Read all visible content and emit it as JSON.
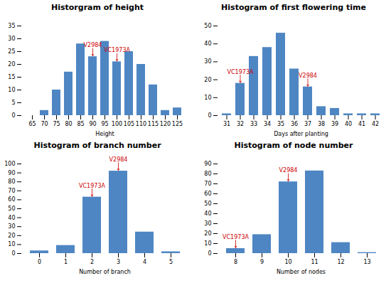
{
  "chart_data": [
    {
      "type": "bar",
      "title": "Historgram of height",
      "xlabel": "Height",
      "categories": [
        65,
        70,
        75,
        80,
        85,
        90,
        95,
        100,
        105,
        110,
        115,
        120,
        125
      ],
      "values": [
        0,
        2,
        10,
        17,
        28,
        23,
        29,
        21,
        25,
        20,
        12,
        2,
        3
      ],
      "color": "#4E86C3",
      "ylim": [
        0,
        35
      ],
      "yticks": [
        0,
        5,
        10,
        15,
        20,
        25,
        30,
        35
      ],
      "grid": false,
      "annotations": [
        {
          "text": "V2984",
          "x": 90,
          "y": 23,
          "color": "#CC0000"
        },
        {
          "text": "VC1973A",
          "x": 100,
          "y": 21,
          "color": "#CC0000"
        }
      ]
    },
    {
      "type": "bar",
      "title": "Histogram of first flowering time",
      "xlabel": "Days after planting",
      "categories": [
        31,
        32,
        33,
        34,
        35,
        36,
        37,
        38,
        39,
        40,
        41,
        42
      ],
      "values": [
        1,
        18,
        33,
        38,
        46,
        26,
        16,
        5,
        4,
        1,
        1,
        1
      ],
      "color": "#4E86C3",
      "ylim": [
        0,
        50
      ],
      "yticks": [
        0,
        10,
        20,
        30,
        40,
        50
      ],
      "grid": false,
      "annotations": [
        {
          "text": "VC1973A",
          "x": 32,
          "y": 18,
          "color": "#CC0000"
        },
        {
          "text": "V2984",
          "x": 37,
          "y": 16,
          "color": "#CC0000"
        }
      ]
    },
    {
      "type": "bar",
      "title": "Histogram of branch number",
      "xlabel": "Number of branch",
      "categories": [
        0,
        1,
        2,
        3,
        4,
        5
      ],
      "values": [
        3,
        9,
        63,
        92,
        24,
        2
      ],
      "color": "#4E86C3",
      "ylim": [
        0,
        100
      ],
      "yticks": [
        0,
        10,
        20,
        30,
        40,
        50,
        60,
        70,
        80,
        90,
        100
      ],
      "grid": false,
      "annotations": [
        {
          "text": "VC1973A",
          "x": 2,
          "y": 63,
          "color": "#CC0000"
        },
        {
          "text": "V2984",
          "x": 3,
          "y": 92,
          "color": "#CC0000"
        }
      ]
    },
    {
      "type": "bar",
      "title": "Histogram of node number",
      "xlabel": "Number of nodes",
      "categories": [
        8,
        9,
        10,
        11,
        12,
        13
      ],
      "values": [
        5,
        19,
        72,
        83,
        11,
        1
      ],
      "color": "#4E86C3",
      "ylim": [
        0,
        90
      ],
      "yticks": [
        0,
        10,
        20,
        30,
        40,
        50,
        60,
        70,
        80,
        90
      ],
      "grid": false,
      "annotations": [
        {
          "text": "VC1973A",
          "x": 8,
          "y": 5,
          "color": "#CC0000"
        },
        {
          "text": "V2984",
          "x": 10,
          "y": 72,
          "color": "#CC0000"
        }
      ]
    }
  ]
}
